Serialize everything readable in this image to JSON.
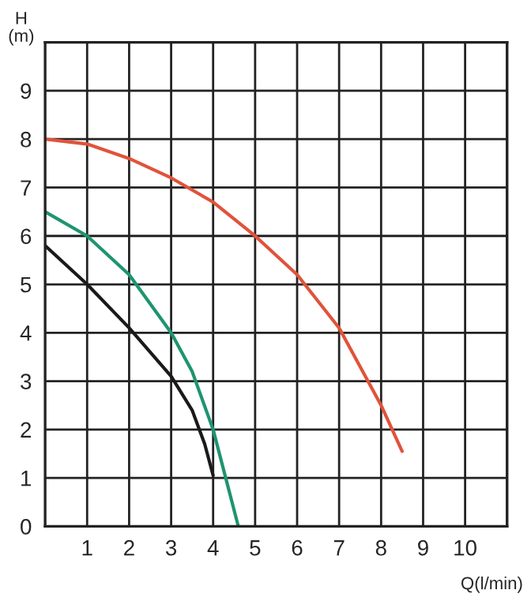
{
  "chart_data": {
    "type": "line",
    "xlabel": "Q(l/min)",
    "ylabel": "H\n(m)",
    "xlim": [
      0,
      11
    ],
    "ylim": [
      0,
      10
    ],
    "xticks": [
      1,
      2,
      3,
      4,
      5,
      6,
      7,
      8,
      9,
      10,
      {
        "value": 11,
        "label": null
      }
    ],
    "yticks": [
      0,
      1,
      2,
      3,
      4,
      5,
      6,
      7,
      8,
      9,
      {
        "value": 10,
        "label": null
      }
    ],
    "grid": true,
    "marker": "none",
    "line_style": "solid",
    "series": [
      {
        "color": "#e0533a",
        "x": [
          0,
          1,
          2,
          3,
          4,
          5,
          6,
          7,
          7.5,
          8,
          8.5
        ],
        "values": [
          8,
          7.9,
          7.6,
          7.2,
          6.7,
          6.0,
          5.2,
          4.1,
          3.3,
          2.5,
          1.55
        ]
      },
      {
        "color": "#1e9470",
        "x": [
          0,
          1,
          2,
          3,
          3.5,
          4,
          4.3,
          4.6
        ],
        "values": [
          6.5,
          6.0,
          5.2,
          4.0,
          3.2,
          2.0,
          1.0,
          0
        ]
      },
      {
        "color": "#1a1a1a",
        "x": [
          0,
          1,
          2,
          3,
          3.5,
          3.8,
          4
        ],
        "values": [
          5.8,
          5.0,
          4.1,
          3.1,
          2.4,
          1.7,
          1.05
        ]
      }
    ]
  }
}
